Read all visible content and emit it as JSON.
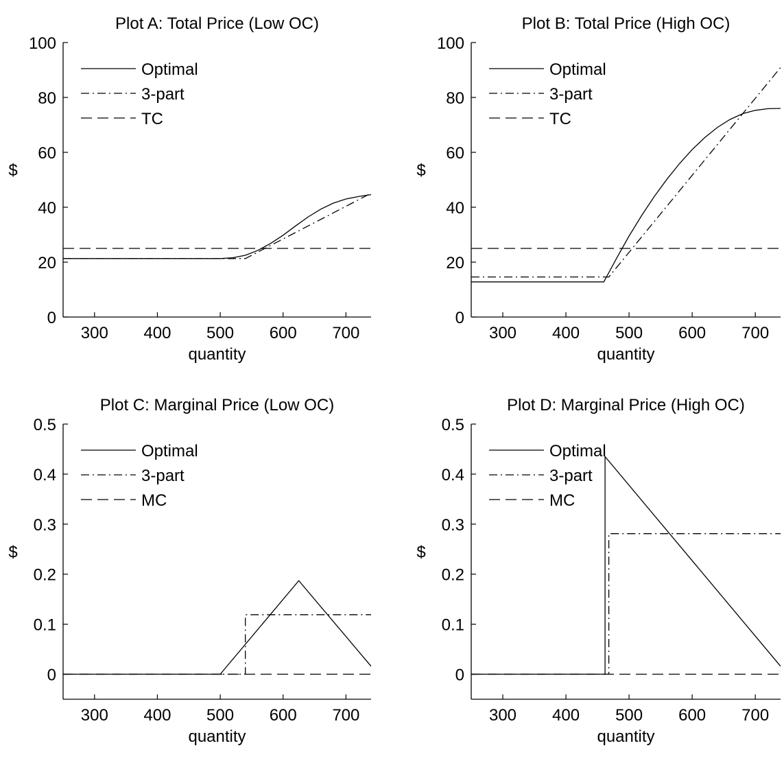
{
  "chart_data": [
    {
      "type": "line",
      "title": "Plot A: Total Price (Low OC)",
      "xlabel": "quantity",
      "ylabel": "$",
      "xlim": [
        250,
        740
      ],
      "ylim": [
        0,
        100
      ],
      "xticks": [
        300,
        400,
        500,
        600,
        700
      ],
      "yticks": [
        0,
        20,
        40,
        60,
        80,
        100
      ],
      "ytick_labels": [
        "0",
        "20",
        "40",
        "60",
        "80",
        "100"
      ],
      "grid": false,
      "legend_position": "top-left",
      "series": [
        {
          "name": "Optimal",
          "style": "solid",
          "points": [
            [
              250,
              21.3
            ],
            [
              500,
              21.3
            ],
            [
              520,
              21.6
            ],
            [
              540,
              22.5
            ],
            [
              560,
              24.3
            ],
            [
              580,
              26.8
            ],
            [
              600,
              29.8
            ],
            [
              620,
              33.2
            ],
            [
              640,
              36.5
            ],
            [
              660,
              39.3
            ],
            [
              680,
              41.5
            ],
            [
              700,
              43.0
            ],
            [
              720,
              43.9
            ],
            [
              740,
              44.6
            ]
          ]
        },
        {
          "name": "3-part",
          "style": "dashdot",
          "points": [
            [
              250,
              21.3
            ],
            [
              540,
              21.3
            ],
            [
              740,
              45.1
            ]
          ]
        },
        {
          "name": "TC",
          "style": "dashed",
          "points": [
            [
              250,
              25.0
            ],
            [
              740,
              25.0
            ]
          ]
        }
      ]
    },
    {
      "type": "line",
      "title": "Plot B: Total Price (High OC)",
      "xlabel": "quantity",
      "ylabel": "$",
      "xlim": [
        250,
        740
      ],
      "ylim": [
        0,
        100
      ],
      "xticks": [
        300,
        400,
        500,
        600,
        700
      ],
      "yticks": [
        0,
        20,
        40,
        60,
        80,
        100
      ],
      "ytick_labels": [
        "0",
        "20",
        "40",
        "60",
        "80",
        "100"
      ],
      "grid": false,
      "legend_position": "top-left",
      "series": [
        {
          "name": "Optimal",
          "style": "solid",
          "points": [
            [
              250,
              12.8
            ],
            [
              460,
              12.8
            ],
            [
              480,
              21.3
            ],
            [
              500,
              29.5
            ],
            [
              520,
              37.0
            ],
            [
              540,
              43.9
            ],
            [
              560,
              50.2
            ],
            [
              580,
              55.9
            ],
            [
              600,
              61.0
            ],
            [
              620,
              65.4
            ],
            [
              640,
              69.1
            ],
            [
              660,
              72.0
            ],
            [
              680,
              74.1
            ],
            [
              700,
              75.3
            ],
            [
              720,
              75.9
            ],
            [
              740,
              76.0
            ]
          ]
        },
        {
          "name": "3-part",
          "style": "dashdot",
          "points": [
            [
              250,
              14.6
            ],
            [
              468,
              14.6
            ],
            [
              740,
              90.9
            ]
          ]
        },
        {
          "name": "TC",
          "style": "dashed",
          "points": [
            [
              250,
              25.0
            ],
            [
              740,
              25.0
            ]
          ]
        }
      ]
    },
    {
      "type": "line",
      "title": "Plot C: Marginal Price (Low OC)",
      "xlabel": "quantity",
      "ylabel": "$",
      "xlim": [
        250,
        740
      ],
      "ylim": [
        -0.05,
        0.5
      ],
      "xticks": [
        300,
        400,
        500,
        600,
        700
      ],
      "yticks": [
        0,
        0.1,
        0.2,
        0.3,
        0.4,
        0.5
      ],
      "ytick_labels": [
        "0",
        "0.1",
        "0.2",
        "0.3",
        "0.4",
        "0.5"
      ],
      "grid": false,
      "legend_position": "top-left",
      "series": [
        {
          "name": "Optimal",
          "style": "solid",
          "points": [
            [
              250,
              0
            ],
            [
              500,
              0
            ],
            [
              625,
              0.187
            ],
            [
              740,
              0.016
            ]
          ]
        },
        {
          "name": "3-part",
          "style": "dashdot",
          "points": [
            [
              250,
              0
            ],
            [
              540,
              0
            ],
            [
              540,
              0.119
            ],
            [
              740,
              0.119
            ]
          ]
        },
        {
          "name": "MC",
          "style": "dashed",
          "points": [
            [
              250,
              0
            ],
            [
              740,
              0
            ]
          ]
        }
      ]
    },
    {
      "type": "line",
      "title": "Plot D: Marginal Price (High OC)",
      "xlabel": "quantity",
      "ylabel": "$",
      "xlim": [
        250,
        740
      ],
      "ylim": [
        -0.05,
        0.5
      ],
      "xticks": [
        300,
        400,
        500,
        600,
        700
      ],
      "yticks": [
        0,
        0.1,
        0.2,
        0.3,
        0.4,
        0.5
      ],
      "ytick_labels": [
        "0",
        "0.1",
        "0.2",
        "0.3",
        "0.4",
        "0.5"
      ],
      "grid": false,
      "legend_position": "top-left",
      "series": [
        {
          "name": "Optimal",
          "style": "solid",
          "points": [
            [
              250,
              0
            ],
            [
              462,
              0
            ],
            [
              462,
              0.435
            ],
            [
              740,
              0.016
            ]
          ]
        },
        {
          "name": "3-part",
          "style": "dashdot",
          "points": [
            [
              250,
              0
            ],
            [
              468,
              0
            ],
            [
              468,
              0.281
            ],
            [
              740,
              0.281
            ]
          ]
        },
        {
          "name": "MC",
          "style": "dashed",
          "points": [
            [
              250,
              0
            ],
            [
              740,
              0
            ]
          ]
        }
      ]
    }
  ]
}
